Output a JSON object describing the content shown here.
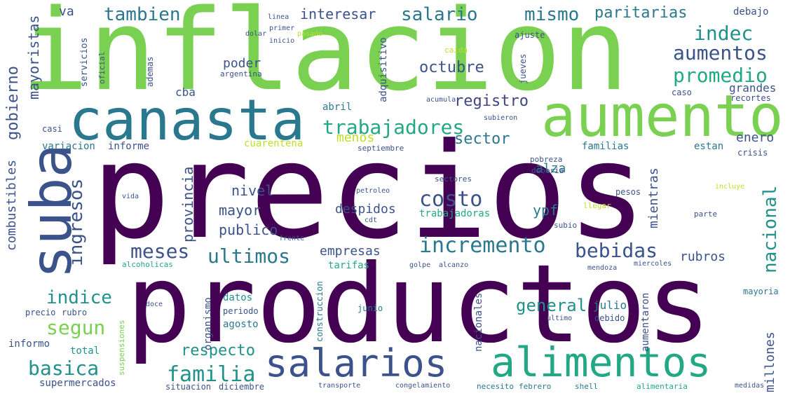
{
  "word_cloud": {
    "words": [
      {
        "text": "inflacion",
        "color": "#7ad151"
      },
      {
        "text": "precios",
        "color": "#440154"
      },
      {
        "text": "productos",
        "color": "#440154"
      },
      {
        "text": "canasta",
        "color": "#2a788e"
      },
      {
        "text": "aumento",
        "color": "#7ad151"
      },
      {
        "text": "suba",
        "color": "#3b528b"
      },
      {
        "text": "salarios",
        "color": "#3b528b"
      },
      {
        "text": "alimentos",
        "color": "#22a884"
      },
      {
        "text": "trabajadores",
        "color": "#22a884"
      },
      {
        "text": "salario",
        "color": "#2a788e"
      },
      {
        "text": "tambien",
        "color": "#2a788e"
      },
      {
        "text": "mismo",
        "color": "#2a788e"
      },
      {
        "text": "paritarias",
        "color": "#2a788e"
      },
      {
        "text": "interesar",
        "color": "#3b528b"
      },
      {
        "text": "aumentos",
        "color": "#3b528b"
      },
      {
        "text": "promedio",
        "color": "#22a884"
      },
      {
        "text": "indec",
        "color": "#21918c"
      },
      {
        "text": "octubre",
        "color": "#3b528b"
      },
      {
        "text": "registro",
        "color": "#414487"
      },
      {
        "text": "sector",
        "color": "#2a788e"
      },
      {
        "text": "costo",
        "color": "#3b528b"
      },
      {
        "text": "incremento",
        "color": "#2a788e"
      },
      {
        "text": "bebidas",
        "color": "#3b528b"
      },
      {
        "text": "ultimos",
        "color": "#2a788e"
      },
      {
        "text": "meses",
        "color": "#3b528b"
      },
      {
        "text": "indice",
        "color": "#21918c"
      },
      {
        "text": "segun",
        "color": "#7ad151"
      },
      {
        "text": "basica",
        "color": "#21918c"
      },
      {
        "text": "familia",
        "color": "#21918c"
      },
      {
        "text": "respecto",
        "color": "#21918c"
      },
      {
        "text": "general",
        "color": "#21918c"
      },
      {
        "text": "nivel",
        "color": "#3b528b"
      },
      {
        "text": "mayor",
        "color": "#3b528b"
      },
      {
        "text": "publico",
        "color": "#3b528b"
      },
      {
        "text": "poder",
        "color": "#3b528b"
      },
      {
        "text": "ypf",
        "color": "#2a788e"
      },
      {
        "text": "alza",
        "color": "#2a788e"
      },
      {
        "text": "enero",
        "color": "#3b528b"
      },
      {
        "text": "rubros",
        "color": "#3b528b"
      },
      {
        "text": "empresas",
        "color": "#3b528b"
      },
      {
        "text": "despidos",
        "color": "#3b528b"
      },
      {
        "text": "cba",
        "color": "#3b528b"
      },
      {
        "text": "va",
        "color": "#3b528b"
      },
      {
        "text": "grandes",
        "color": "#3b528b"
      },
      {
        "text": "menos",
        "color": "#bddf26"
      },
      {
        "text": "cuarentena",
        "color": "#bddf26"
      },
      {
        "text": "informe",
        "color": "#3b528b"
      },
      {
        "text": "familias",
        "color": "#2a788e"
      },
      {
        "text": "estan",
        "color": "#2a788e"
      },
      {
        "text": "crisis",
        "color": "#3b528b"
      },
      {
        "text": "abril",
        "color": "#2a788e"
      },
      {
        "text": "variacion",
        "color": "#2a788e"
      },
      {
        "text": "casi",
        "color": "#3b528b"
      },
      {
        "text": "precio",
        "color": "#3b528b"
      },
      {
        "text": "rubro",
        "color": "#3b528b"
      },
      {
        "text": "informo",
        "color": "#3b528b"
      },
      {
        "text": "total",
        "color": "#21918c"
      },
      {
        "text": "supermercados",
        "color": "#3b528b"
      },
      {
        "text": "datos",
        "color": "#21918c"
      },
      {
        "text": "periodo",
        "color": "#3b528b"
      },
      {
        "text": "agosto",
        "color": "#2a788e"
      },
      {
        "text": "julio",
        "color": "#2a788e"
      },
      {
        "text": "junio",
        "color": "#2a788e"
      },
      {
        "text": "tarifas",
        "color": "#22a884"
      },
      {
        "text": "trabajadoras",
        "color": "#22a884"
      },
      {
        "text": "mayoria",
        "color": "#2a788e"
      },
      {
        "text": "debido",
        "color": "#3b528b"
      },
      {
        "text": "ultimo",
        "color": "#3b528b"
      },
      {
        "text": "sectores",
        "color": "#3b528b"
      },
      {
        "text": "subio",
        "color": "#3b528b"
      },
      {
        "text": "parte",
        "color": "#3b528b"
      },
      {
        "text": "pesos",
        "color": "#3b528b"
      },
      {
        "text": "debajo",
        "color": "#3b528b"
      },
      {
        "text": "ajuste",
        "color": "#3b528b"
      },
      {
        "text": "caso",
        "color": "#3b528b"
      },
      {
        "text": "cdt",
        "color": "#3b528b"
      },
      {
        "text": "alcanzo",
        "color": "#3b528b"
      },
      {
        "text": "golpe",
        "color": "#3b528b"
      },
      {
        "text": "doce",
        "color": "#3b528b"
      },
      {
        "text": "situacion",
        "color": "#3b528b"
      },
      {
        "text": "diciembre",
        "color": "#3b528b"
      },
      {
        "text": "transporte",
        "color": "#3b528b"
      },
      {
        "text": "congelamiento",
        "color": "#3b528b"
      },
      {
        "text": "necesito",
        "color": "#2a788e"
      },
      {
        "text": "febrero",
        "color": "#2a788e"
      },
      {
        "text": "shell",
        "color": "#2a788e"
      },
      {
        "text": "alimentaria",
        "color": "#22a884"
      },
      {
        "text": "medidas",
        "color": "#3b528b"
      },
      {
        "text": "gobierno",
        "color": "#3b528b"
      },
      {
        "text": "mayoristas",
        "color": "#3b528b"
      },
      {
        "text": "combustibles",
        "color": "#3b528b"
      },
      {
        "text": "ingresos",
        "color": "#3b528b"
      },
      {
        "text": "provincia",
        "color": "#3b528b"
      },
      {
        "text": "nacional",
        "color": "#21918c"
      },
      {
        "text": "mientras",
        "color": "#3b528b"
      },
      {
        "text": "millones",
        "color": "#3b528b"
      },
      {
        "text": "aumentaron",
        "color": "#3b528b"
      },
      {
        "text": "adquisitivo",
        "color": "#3b528b"
      },
      {
        "text": "organismo",
        "color": "#3b528b"
      },
      {
        "text": "nacionales",
        "color": "#3b528b"
      },
      {
        "text": "construccion",
        "color": "#2a788e"
      },
      {
        "text": "servicios",
        "color": "#3b528b"
      },
      {
        "text": "ademas",
        "color": "#3b528b"
      },
      {
        "text": "primer",
        "color": "#3b528b"
      },
      {
        "text": "inicio",
        "color": "#3b528b"
      },
      {
        "text": "dolar",
        "color": "#3b528b"
      },
      {
        "text": "linea",
        "color": "#3b528b"
      },
      {
        "text": "argentina",
        "color": "#3b528b"
      },
      {
        "text": "pasado",
        "color": "#bddf26"
      },
      {
        "text": "caida",
        "color": "#bddf26"
      },
      {
        "text": "jueves",
        "color": "#3b528b"
      },
      {
        "text": "acumula",
        "color": "#3b528b"
      },
      {
        "text": "subieron",
        "color": "#3b528b"
      },
      {
        "text": "recortes",
        "color": "#3b528b"
      },
      {
        "text": "septiembre",
        "color": "#3b528b"
      },
      {
        "text": "pobreza",
        "color": "#3b528b"
      },
      {
        "text": "deberia",
        "color": "#3b528b"
      },
      {
        "text": "incluye",
        "color": "#bddf26"
      },
      {
        "text": "llegar",
        "color": "#bddf26"
      },
      {
        "text": "vida",
        "color": "#3b528b"
      },
      {
        "text": "alcoholicas",
        "color": "#22a884"
      },
      {
        "text": "frente",
        "color": "#3b528b"
      },
      {
        "text": "miercoles",
        "color": "#3b528b"
      },
      {
        "text": "suspensiones",
        "color": "#7ad151"
      },
      {
        "text": "mendoza",
        "color": "#3b528b"
      },
      {
        "text": "petroleo",
        "color": "#3b528b"
      },
      {
        "text": "oficial",
        "color": "#3b528b"
      }
    ]
  }
}
